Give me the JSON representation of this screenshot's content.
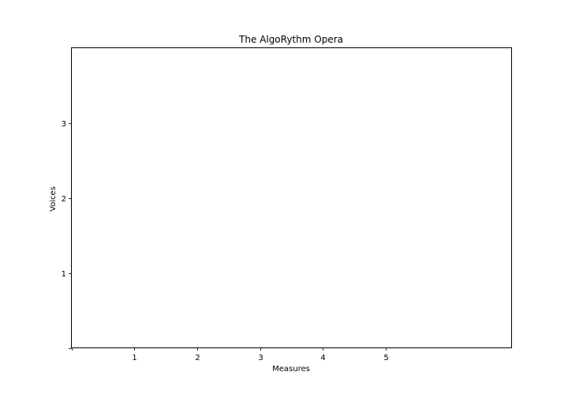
{
  "chart_data": {
    "type": "line",
    "title": "The AlgoRythm Opera",
    "xlabel": "Measures",
    "ylabel": "Voices",
    "x_ticks": [
      0,
      1,
      2,
      3,
      4,
      5
    ],
    "x_tick_labels": [
      "",
      "1",
      "2",
      "3",
      "4",
      "5"
    ],
    "y_ticks": [
      0,
      1,
      2,
      3
    ],
    "y_tick_labels": [
      "",
      "1",
      "2",
      "3"
    ],
    "xlim": [
      0,
      7
    ],
    "ylim": [
      0,
      4
    ],
    "grid": false,
    "series": []
  }
}
